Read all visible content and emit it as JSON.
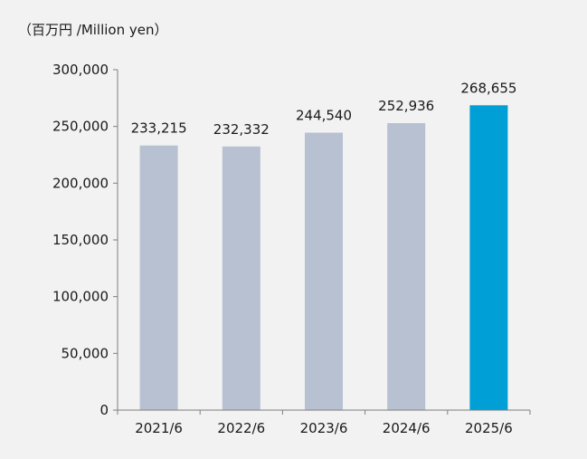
{
  "chart_data": {
    "type": "bar",
    "unit_label": "（百万円 /Million yen）",
    "categories": [
      "2021/6",
      "2022/6",
      "2023/6",
      "2024/6",
      "2025/6"
    ],
    "values": [
      233215,
      232332,
      244540,
      252936,
      268655
    ],
    "value_labels": [
      "233,215",
      "232,332",
      "244,540",
      "252,936",
      "268,655"
    ],
    "ylim": [
      0,
      300000
    ],
    "yticks": [
      0,
      50000,
      100000,
      150000,
      200000,
      250000,
      300000
    ],
    "ytick_labels": [
      "0",
      "50,000",
      "100,000",
      "150,000",
      "200,000",
      "250,000",
      "300,000"
    ],
    "grid": false,
    "colors": {
      "default": "#b8c1d1",
      "highlight": "#009fd6",
      "axis": "#7f7f7f",
      "background": "#f2f2f2"
    },
    "highlight_index": 4
  }
}
